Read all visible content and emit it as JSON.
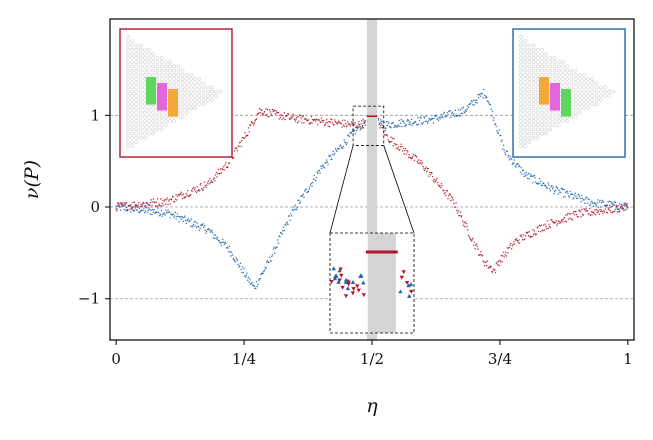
{
  "chart_data": {
    "type": "scatter",
    "title": "",
    "xlabel": "η",
    "ylabel": "ν(P)",
    "xlim": [
      -0.012,
      1.012
    ],
    "ylim": [
      -1.45,
      2.05
    ],
    "x_ticks": [
      0,
      0.25,
      0.5,
      0.75,
      1
    ],
    "x_tick_labels": [
      "0",
      "1/4",
      "1/2",
      "3/4",
      "1"
    ],
    "y_ticks": [
      -1,
      0,
      1
    ],
    "y_tick_labels": [
      "−1",
      "0",
      "1"
    ],
    "grid": "horizontal dashed at y ticks",
    "shaded_band": [
      0.49,
      0.51
    ],
    "series": [
      {
        "name": "red",
        "color": "#b2182b",
        "marker": "down-triangle",
        "knots": [
          [
            0,
            0.0
          ],
          [
            0.1,
            0.06
          ],
          [
            0.18,
            0.25
          ],
          [
            0.22,
            0.48
          ],
          [
            0.255,
            0.8
          ],
          [
            0.28,
            1.05
          ],
          [
            0.34,
            0.97
          ],
          [
            0.4,
            0.93
          ],
          [
            0.47,
            0.89
          ],
          [
            0.5,
            0.92
          ],
          [
            0.51,
            0.95
          ],
          [
            0.53,
            0.76
          ],
          [
            0.6,
            0.45
          ],
          [
            0.66,
            0.05
          ],
          [
            0.7,
            -0.4
          ],
          [
            0.72,
            -0.6
          ],
          [
            0.74,
            -0.7
          ],
          [
            0.745,
            -0.62
          ],
          [
            0.78,
            -0.38
          ],
          [
            0.84,
            -0.2
          ],
          [
            0.9,
            -0.08
          ],
          [
            1.0,
            0.0
          ]
        ]
      },
      {
        "name": "blue",
        "color": "#2166ac",
        "marker": "up-triangle",
        "knots": [
          [
            0,
            0.0
          ],
          [
            0.1,
            -0.06
          ],
          [
            0.18,
            -0.25
          ],
          [
            0.22,
            -0.45
          ],
          [
            0.26,
            -0.8
          ],
          [
            0.27,
            -0.88
          ],
          [
            0.3,
            -0.58
          ],
          [
            0.34,
            -0.1
          ],
          [
            0.4,
            0.42
          ],
          [
            0.47,
            0.85
          ],
          [
            0.49,
            0.95
          ],
          [
            0.5,
            0.92
          ],
          [
            0.53,
            0.9
          ],
          [
            0.62,
            0.96
          ],
          [
            0.68,
            1.05
          ],
          [
            0.72,
            1.25
          ],
          [
            0.725,
            1.2
          ],
          [
            0.76,
            0.6
          ],
          [
            0.8,
            0.35
          ],
          [
            0.86,
            0.18
          ],
          [
            0.93,
            0.05
          ],
          [
            1.0,
            0.0
          ]
        ]
      }
    ],
    "insets": [
      {
        "name": "left-lattice",
        "frame_color": "#b2182b",
        "patch_order": [
          "green",
          "magenta",
          "orange"
        ]
      },
      {
        "name": "right-lattice",
        "frame_color": "#2166ac",
        "patch_order": [
          "orange",
          "magenta",
          "green"
        ]
      }
    ],
    "zoom_box": {
      "x_range": [
        0.463,
        0.523
      ],
      "y_range": [
        0.67,
        1.1
      ]
    },
    "patch_colors": {
      "green": "#4ed44e",
      "magenta": "#e058d8",
      "orange": "#f5a020"
    }
  }
}
